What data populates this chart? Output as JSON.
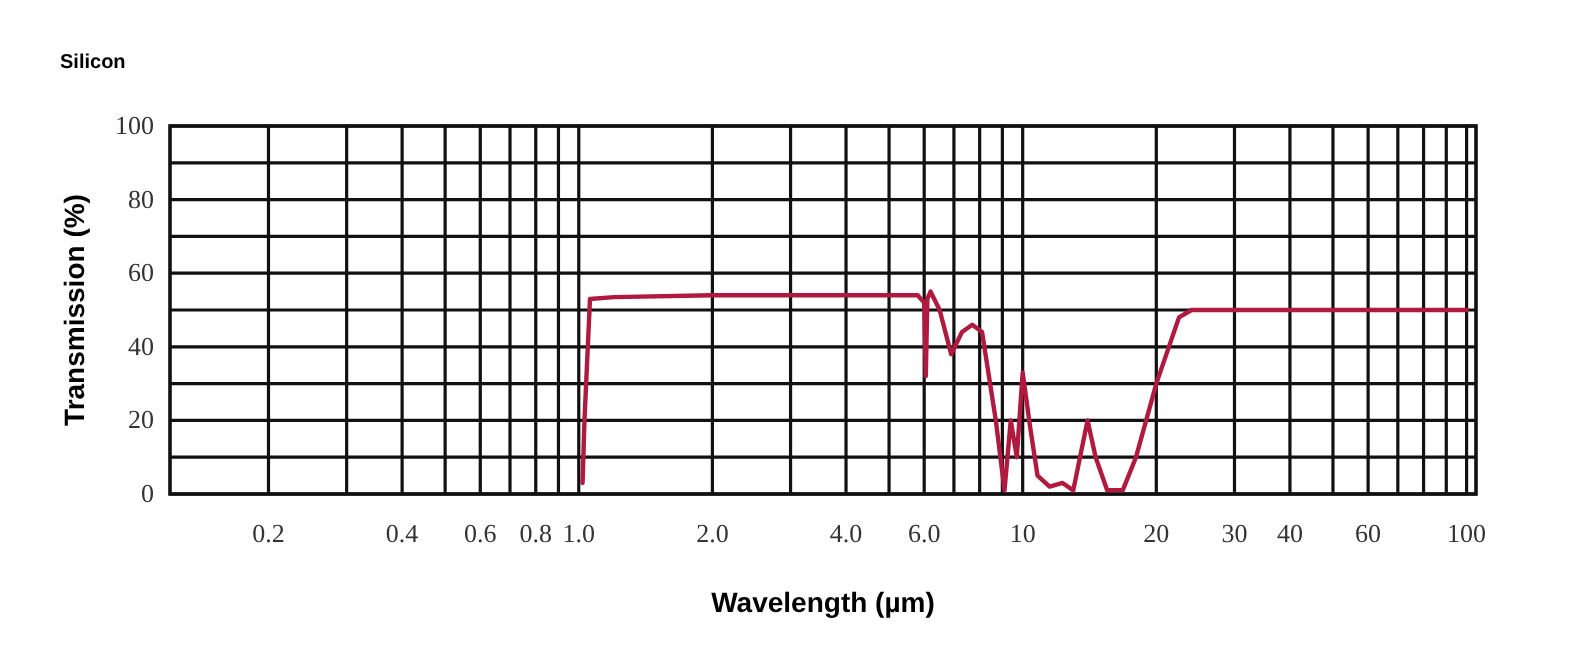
{
  "chart_data": {
    "type": "line",
    "title": "Silicon",
    "xlabel": "Wavelength (µm)",
    "ylabel": "Transmission (%)",
    "log": "x",
    "grid": true,
    "marker": "none",
    "line_style": "solid",
    "xlim": [
      0.12,
      105
    ],
    "ylim": [
      0,
      100
    ],
    "xticks": [
      0.2,
      {
        "value": 0.3,
        "label": null
      },
      {
        "value": 0.4,
        "label": "0.4"
      },
      {
        "value": 0.5,
        "label": null
      },
      {
        "value": 0.6,
        "label": "0.6"
      },
      {
        "value": 0.7,
        "label": null
      },
      {
        "value": 0.8,
        "label": "0.8"
      },
      {
        "value": 0.9,
        "label": null
      },
      {
        "value": 1,
        "label": "1.0"
      },
      {
        "value": 2,
        "label": "2.0"
      },
      {
        "value": 3,
        "label": null
      },
      {
        "value": 4,
        "label": "4.0"
      },
      {
        "value": 5,
        "label": null
      },
      {
        "value": 6,
        "label": "6.0"
      },
      {
        "value": 7,
        "label": null
      },
      {
        "value": 8,
        "label": null
      },
      {
        "value": 9,
        "label": null
      },
      10,
      20,
      30,
      40,
      {
        "value": 50,
        "label": null
      },
      60,
      {
        "value": 70,
        "label": null
      },
      {
        "value": 80,
        "label": null
      },
      {
        "value": 90,
        "label": null
      },
      100
    ],
    "yticks": [
      0,
      {
        "value": 10,
        "label": null
      },
      20,
      {
        "value": 30,
        "label": null
      },
      40,
      {
        "value": 50,
        "label": null
      },
      60,
      {
        "value": 70,
        "label": null
      },
      80,
      {
        "value": 90,
        "label": null
      },
      100
    ],
    "series": [
      {
        "color": "#b01a3f",
        "x": [
          1.02,
          1.03,
          1.06,
          1.2,
          2,
          4,
          5.8,
          6.0,
          6.05,
          6.1,
          6.2,
          6.5,
          6.9,
          7.3,
          7.7,
          8.1,
          8.7,
          9.1,
          9.4,
          9.7,
          10.0,
          10.4,
          10.8,
          11.5,
          12.3,
          13,
          14,
          14.6,
          15.5,
          16.8,
          18,
          20,
          22.5,
          24,
          40,
          100
        ],
        "values": [
          3,
          20,
          53,
          53.5,
          54,
          54,
          54,
          52,
          32,
          53,
          55,
          50,
          38,
          44,
          46,
          44,
          20,
          1,
          20,
          10,
          33,
          18,
          5,
          2,
          3,
          1,
          20,
          10,
          1,
          1,
          10,
          30,
          48,
          50,
          50,
          50
        ]
      }
    ]
  }
}
